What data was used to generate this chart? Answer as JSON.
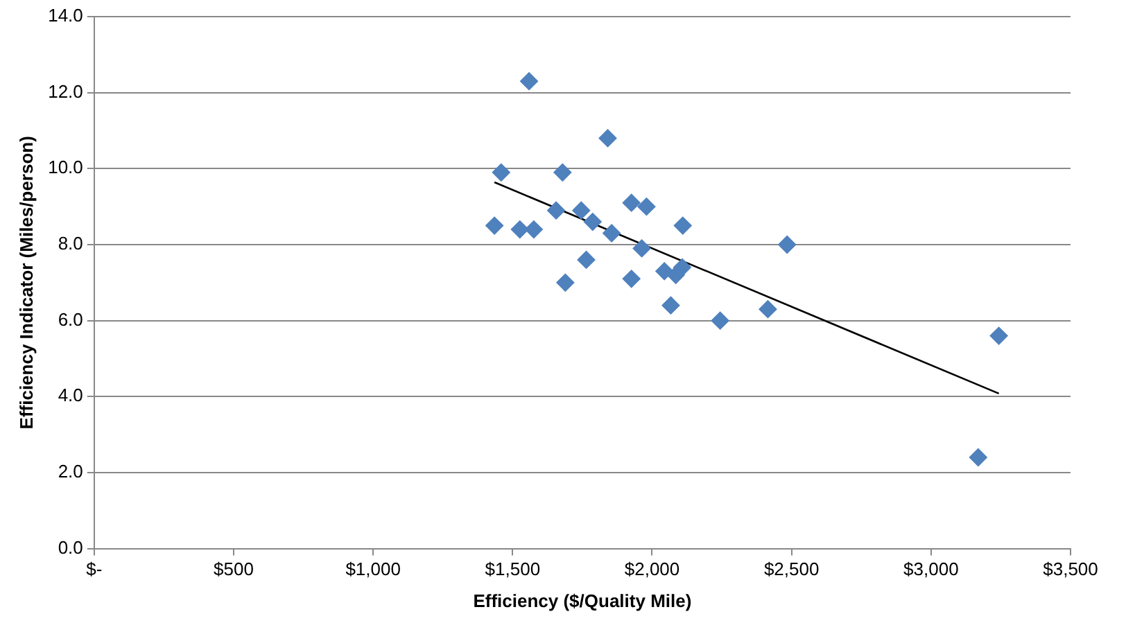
{
  "chart_data": {
    "type": "scatter",
    "xlabel": "Efficiency ($/Quality Mile)",
    "ylabel": "Efficiency Indicator (Miles/person)",
    "xlim": [
      0,
      3500
    ],
    "xticks": [
      {
        "value": 0,
        "label": "$-"
      },
      {
        "value": 500,
        "label": "$500"
      },
      {
        "value": 1000,
        "label": "$1,000"
      },
      {
        "value": 1500,
        "label": "$1,500"
      },
      {
        "value": 2000,
        "label": "$2,000"
      },
      {
        "value": 2500,
        "label": "$2,500"
      },
      {
        "value": 3000,
        "label": "$3,000"
      },
      {
        "value": 3500,
        "label": "$3,500"
      }
    ],
    "ylim": [
      0,
      14
    ],
    "yticks": [
      {
        "value": 0,
        "label": "0.0"
      },
      {
        "value": 2,
        "label": "2.0"
      },
      {
        "value": 4,
        "label": "4.0"
      },
      {
        "value": 6,
        "label": "6.0"
      },
      {
        "value": 8,
        "label": "8.0"
      },
      {
        "value": 10,
        "label": "10.0"
      },
      {
        "value": 12,
        "label": "12.0"
      },
      {
        "value": 14,
        "label": "14.0"
      }
    ],
    "grid": "y",
    "legend": false,
    "marker": "diamond",
    "series": [
      {
        "color": "#4f81bd",
        "x": [
          1559,
          1459,
          1679,
          1841,
          1435,
          1526,
          1576,
          1656,
          1746,
          1787,
          1855,
          1926,
          1980,
          2110,
          1963,
          1764,
          1689,
          1926,
          2044,
          2085,
          2108,
          2067,
          2244,
          2415,
          2484,
          3243,
          3169
        ],
        "values": [
          12.3,
          9.9,
          9.9,
          10.8,
          8.5,
          8.4,
          8.4,
          8.9,
          8.9,
          8.6,
          8.3,
          9.1,
          9.0,
          8.5,
          7.9,
          7.6,
          7.0,
          7.1,
          7.3,
          7.2,
          7.4,
          6.4,
          6.0,
          6.3,
          8.0,
          5.6,
          2.4
        ]
      },
      {
        "type": "line",
        "marker": "none",
        "color": "#000000",
        "x": [
          1435,
          3243
        ],
        "values": [
          9.64,
          4.08
        ]
      }
    ]
  }
}
